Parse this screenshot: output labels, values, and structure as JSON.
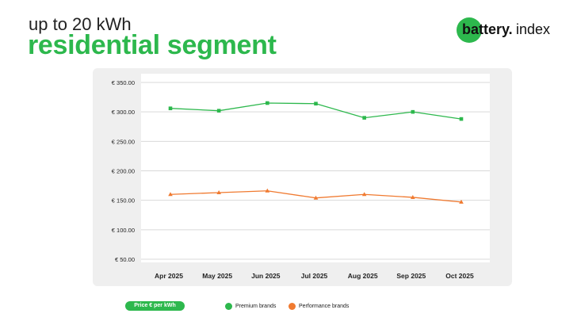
{
  "header": {
    "line1": "up to 20 kWh",
    "line2": "residential segment"
  },
  "logo": {
    "bold": "battery.",
    "light": "index",
    "color": "#2db84d"
  },
  "legend": {
    "badge": "Price € per kWh",
    "items": [
      {
        "label": "Premium brands",
        "color": "#2db84d"
      },
      {
        "label": "Performance brands",
        "color": "#f07a30"
      }
    ]
  },
  "chart_data": {
    "type": "line",
    "categories": [
      "Apr 2025",
      "May 2025",
      "Jun 2025",
      "Jul 2025",
      "Aug 2025",
      "Sep 2025",
      "Oct 2025"
    ],
    "series": [
      {
        "name": "Premium brands",
        "color": "#2db84d",
        "marker": "square",
        "values": [
          306,
          302,
          315,
          314,
          290,
          300,
          288
        ]
      },
      {
        "name": "Performance brands",
        "color": "#f07a30",
        "marker": "triangle",
        "values": [
          160,
          163,
          166,
          154,
          160,
          155,
          147
        ]
      }
    ],
    "ylim": [
      50,
      350
    ],
    "yticks": [
      350,
      300,
      250,
      200,
      150,
      100,
      50
    ],
    "ytick_labels": [
      "€ 350.00",
      "€ 300.00",
      "€ 250.00",
      "€ 200.00",
      "€ 150.00",
      "€ 100.00",
      "€ 50.00"
    ],
    "grid": true
  }
}
